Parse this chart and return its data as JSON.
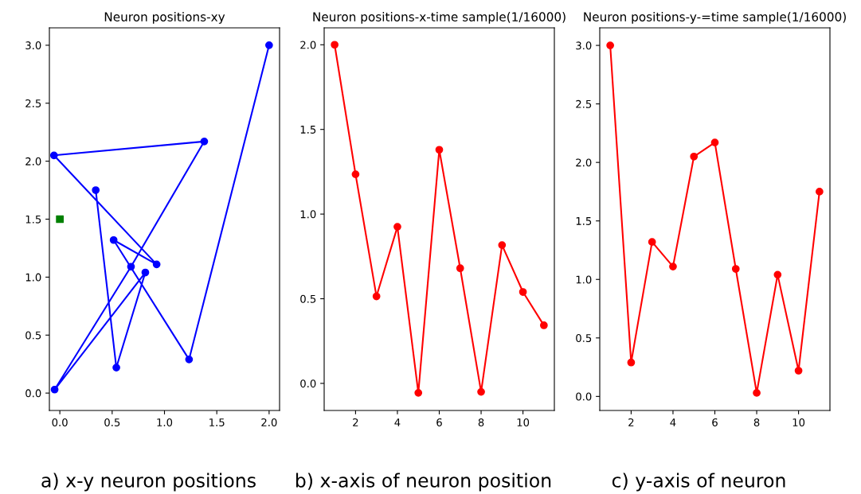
{
  "chart_data": [
    {
      "type": "line",
      "title": "Neuron positions-xy",
      "xlim": [
        -0.1,
        2.1
      ],
      "ylim": [
        -0.15,
        3.15
      ],
      "xticks": [
        {
          "value": 0,
          "label": "0.0"
        },
        0.5,
        {
          "value": 1,
          "label": "1.0"
        },
        1.5,
        {
          "value": 2,
          "label": "2.0"
        }
      ],
      "yticks": [
        {
          "value": 0,
          "label": "0.0"
        },
        0.5,
        {
          "value": 1,
          "label": "1.0"
        },
        1.5,
        {
          "value": 2,
          "label": "2.0"
        },
        2.5,
        {
          "value": 3,
          "label": "3.0"
        }
      ],
      "grid": false,
      "annotations": [
        "a) x-y neuron positions"
      ],
      "series": [
        {
          "marker": "circle",
          "color": "#0000ff",
          "x": [
            2.0,
            1.235,
            0.514,
            0.925,
            -0.056,
            1.38,
            0.68,
            -0.05,
            0.817,
            0.54,
            0.343
          ],
          "values": [
            3.0,
            0.29,
            1.32,
            1.11,
            2.05,
            2.17,
            1.09,
            0.03,
            1.04,
            0.22,
            1.75
          ]
        },
        {
          "type": "scatter",
          "marker": "square",
          "color": "#008000",
          "x": [
            0.0
          ],
          "values": [
            1.5
          ]
        }
      ]
    },
    {
      "type": "line",
      "title": "Neuron positions-x-time sample(1/16000)",
      "xlim": [
        0.5,
        11.5
      ],
      "ylim": [
        -0.16,
        2.1
      ],
      "xticks": [
        2,
        4,
        6,
        8,
        10
      ],
      "yticks": [
        {
          "value": 0,
          "label": "0.0"
        },
        0.5,
        {
          "value": 1,
          "label": "1.0"
        },
        1.5,
        {
          "value": 2,
          "label": "2.0"
        }
      ],
      "grid": false,
      "annotations": [
        "b) x-axis of neuron position"
      ],
      "series": [
        {
          "marker": "circle",
          "color": "#ff0000",
          "x": [
            1,
            2,
            3,
            4,
            5,
            6,
            7,
            8,
            9,
            10,
            11
          ],
          "values": [
            2.0,
            1.235,
            0.514,
            0.925,
            -0.056,
            1.38,
            0.68,
            -0.05,
            0.817,
            0.54,
            0.343
          ]
        }
      ]
    },
    {
      "type": "line",
      "title": "Neuron positions-y-=time sample(1/16000)",
      "xlim": [
        0.5,
        11.5
      ],
      "ylim": [
        -0.12,
        3.15
      ],
      "xticks": [
        2,
        4,
        6,
        8,
        10
      ],
      "yticks": [
        {
          "value": 0,
          "label": "0.0"
        },
        0.5,
        {
          "value": 1,
          "label": "1.0"
        },
        1.5,
        {
          "value": 2,
          "label": "2.0"
        },
        2.5,
        {
          "value": 3,
          "label": "3.0"
        }
      ],
      "grid": false,
      "annotations": [
        "c) y-axis of neuron"
      ],
      "series": [
        {
          "marker": "circle",
          "color": "#ff0000",
          "x": [
            1,
            2,
            3,
            4,
            5,
            6,
            7,
            8,
            9,
            10,
            11
          ],
          "values": [
            3.0,
            0.29,
            1.32,
            1.11,
            2.05,
            2.17,
            1.09,
            0.03,
            1.04,
            0.22,
            1.75
          ]
        }
      ]
    }
  ]
}
